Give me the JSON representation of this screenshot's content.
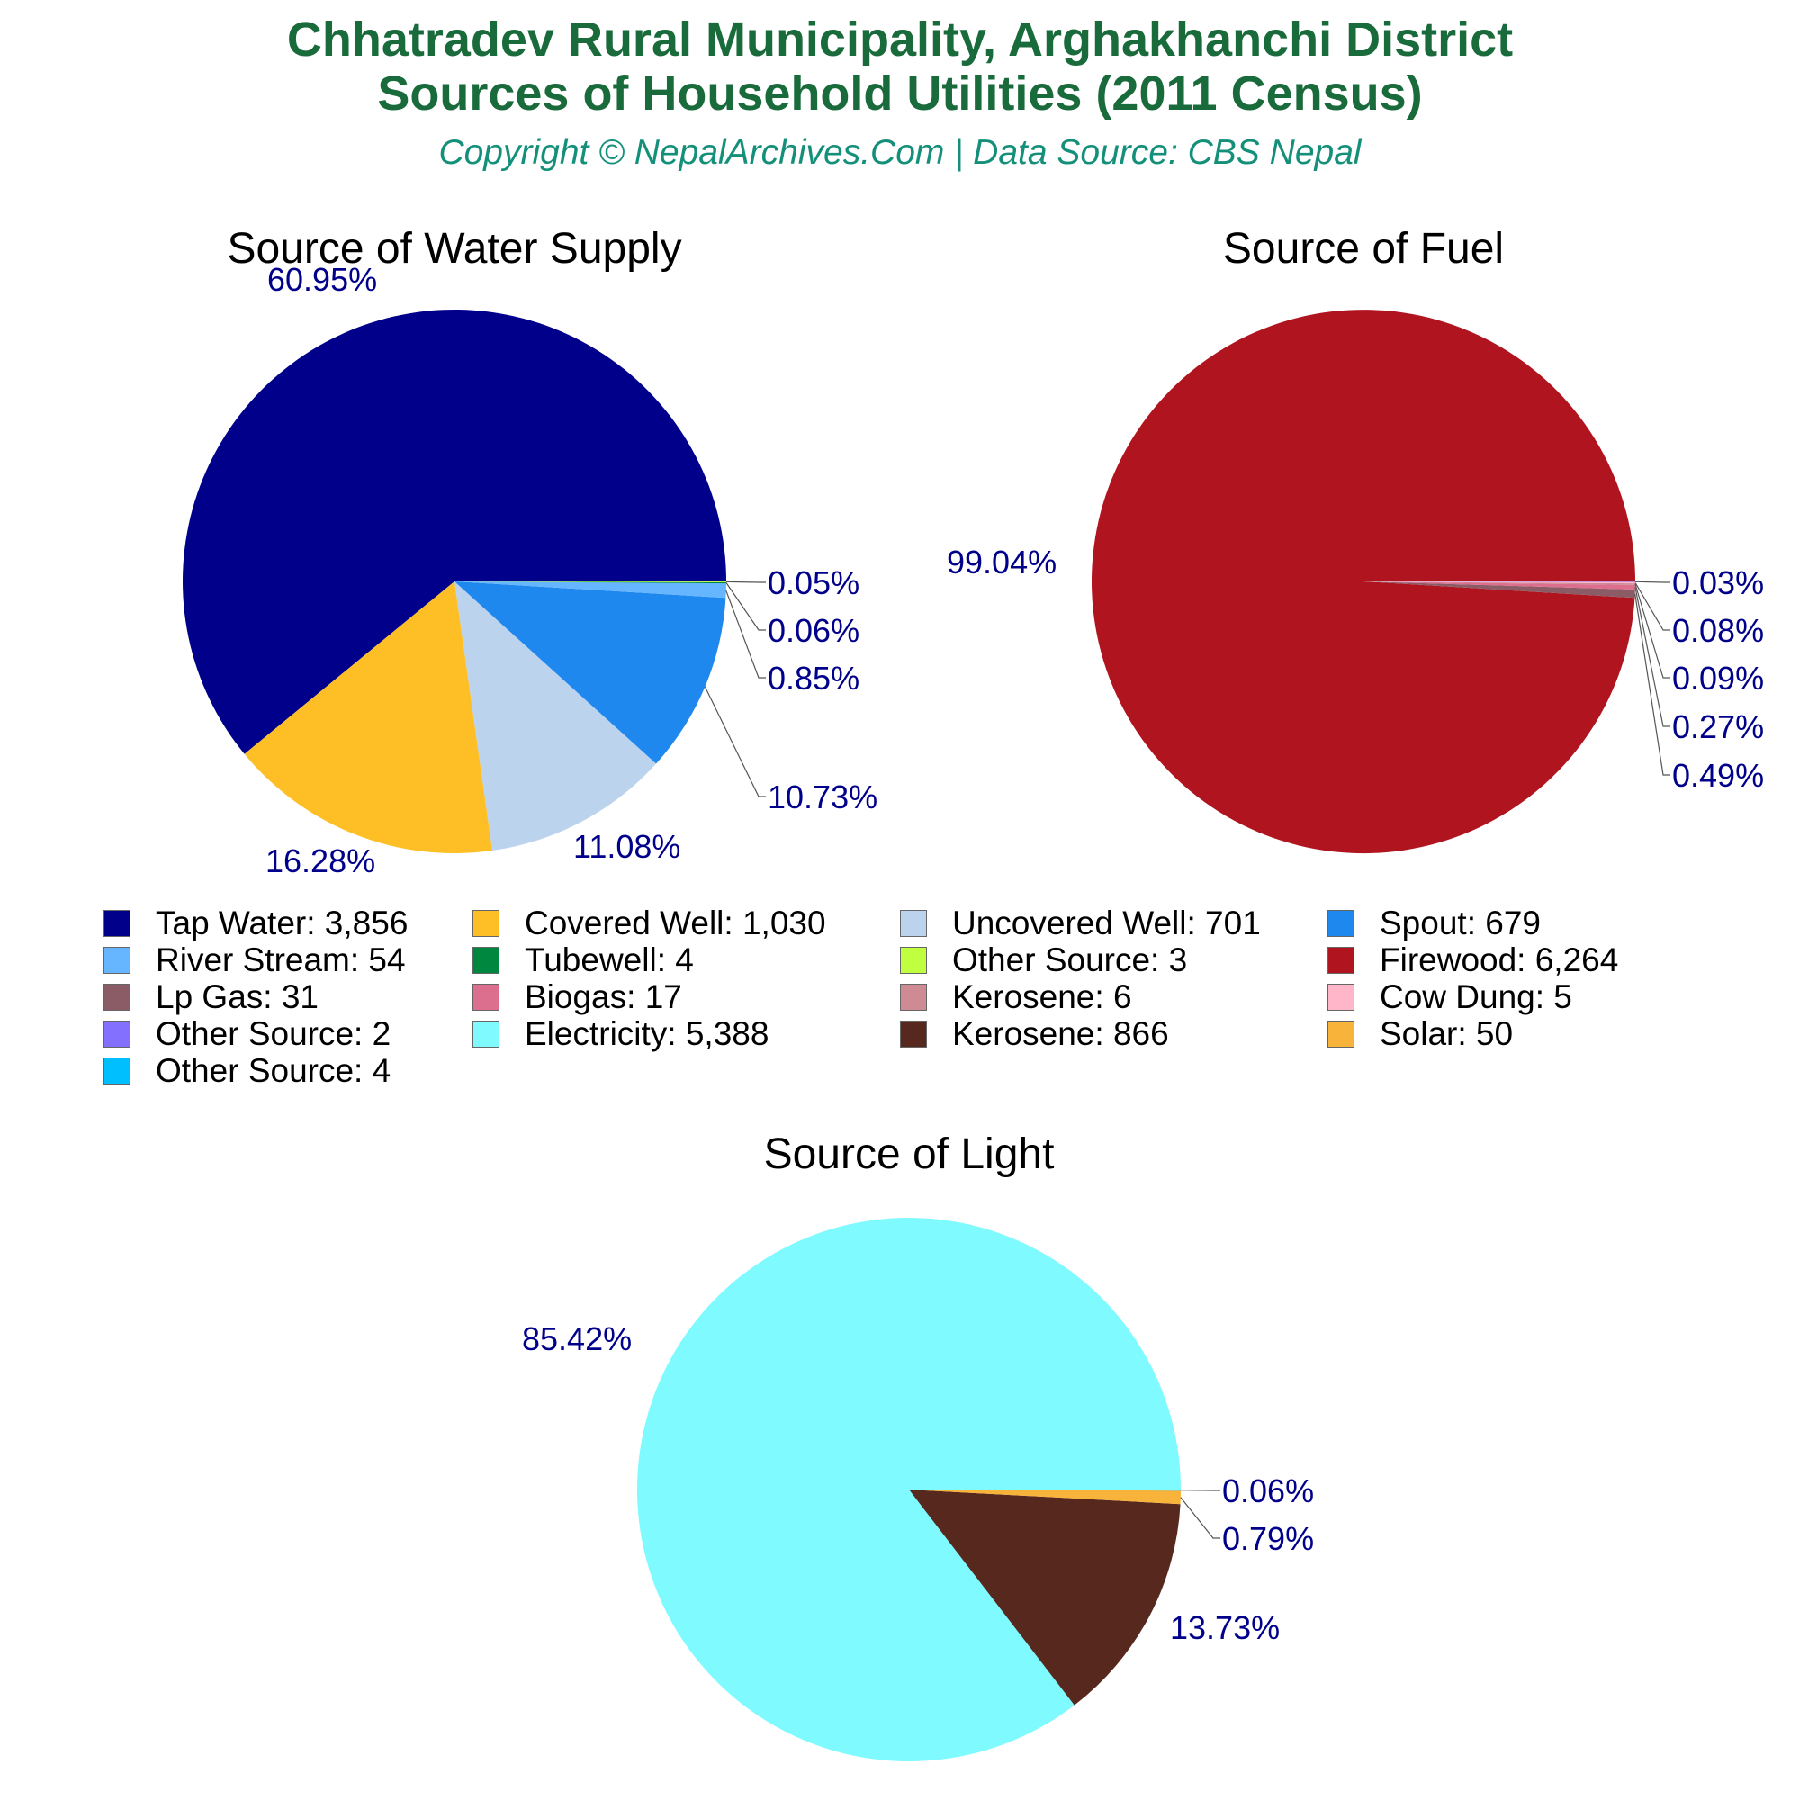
{
  "header": {
    "title_line1": "Chhatradev Rural Municipality, Arghakhanchi District",
    "title_line2": "Sources of Household Utilities (2011 Census)",
    "subtitle": "Copyright © NepalArchives.Com | Data Source: CBS Nepal"
  },
  "chart_data": [
    {
      "type": "pie",
      "title": "Source of Water Supply",
      "slices": [
        {
          "label": "Tap Water",
          "value": 3856,
          "percent_label": "60.95%",
          "color": "#00008b"
        },
        {
          "label": "Covered Well",
          "value": 1030,
          "percent_label": "16.28%",
          "color": "#fdbf25"
        },
        {
          "label": "Uncovered Well",
          "value": 701,
          "percent_label": "11.08%",
          "color": "#bcd3ee"
        },
        {
          "label": "Spout",
          "value": 679,
          "percent_label": "10.73%",
          "color": "#1f88ef"
        },
        {
          "label": "River Stream",
          "value": 54,
          "percent_label": "0.85%",
          "color": "#66b5ff"
        },
        {
          "label": "Tubewell",
          "value": 4,
          "percent_label": "0.06%",
          "color": "#00873f"
        },
        {
          "label": "Other Source",
          "value": 3,
          "percent_label": "0.05%",
          "color": "#bfff3f"
        }
      ]
    },
    {
      "type": "pie",
      "title": "Source of Fuel",
      "slices": [
        {
          "label": "Firewood",
          "value": 6264,
          "percent_label": "99.04%",
          "color": "#b0151f"
        },
        {
          "label": "Lp Gas",
          "value": 31,
          "percent_label": "0.49%",
          "color": "#8b5c65"
        },
        {
          "label": "Biogas",
          "value": 17,
          "percent_label": "0.27%",
          "color": "#dc6e8e"
        },
        {
          "label": "Kerosene",
          "value": 6,
          "percent_label": "0.09%",
          "color": "#cf8b93"
        },
        {
          "label": "Cow Dung",
          "value": 5,
          "percent_label": "0.08%",
          "color": "#ffb6c9"
        },
        {
          "label": "Other Source",
          "value": 2,
          "percent_label": "0.03%",
          "color": "#8470ff"
        }
      ]
    },
    {
      "type": "pie",
      "title": "Source of Light",
      "slices": [
        {
          "label": "Electricity",
          "value": 5388,
          "percent_label": "85.42%",
          "color": "#7ffaff"
        },
        {
          "label": "Kerosene",
          "value": 866,
          "percent_label": "13.73%",
          "color": "#56281e"
        },
        {
          "label": "Solar",
          "value": 50,
          "percent_label": "0.79%",
          "color": "#f8b33a"
        },
        {
          "label": "Other Source",
          "value": 4,
          "percent_label": "0.06%",
          "color": "#00bfff"
        }
      ]
    }
  ],
  "legend": [
    {
      "text": "Tap Water: 3,856",
      "color": "#00008b"
    },
    {
      "text": "Covered Well: 1,030",
      "color": "#fdbf25"
    },
    {
      "text": "Uncovered Well: 701",
      "color": "#bcd3ee"
    },
    {
      "text": "Spout: 679",
      "color": "#1f88ef"
    },
    {
      "text": "River Stream: 54",
      "color": "#66b5ff"
    },
    {
      "text": "Tubewell: 4",
      "color": "#00873f"
    },
    {
      "text": "Other Source: 3",
      "color": "#bfff3f"
    },
    {
      "text": "Firewood: 6,264",
      "color": "#b0151f"
    },
    {
      "text": "Lp Gas: 31",
      "color": "#8b5c65"
    },
    {
      "text": "Biogas: 17",
      "color": "#dc6e8e"
    },
    {
      "text": "Kerosene: 6",
      "color": "#cf8b93"
    },
    {
      "text": "Cow Dung: 5",
      "color": "#ffb6c9"
    },
    {
      "text": "Other Source: 2",
      "color": "#8470ff"
    },
    {
      "text": "Electricity: 5,388",
      "color": "#7ffaff"
    },
    {
      "text": "Kerosene: 866",
      "color": "#56281e"
    },
    {
      "text": "Solar: 50",
      "color": "#f8b33a"
    },
    {
      "text": "Other Source: 4",
      "color": "#00bfff"
    }
  ]
}
